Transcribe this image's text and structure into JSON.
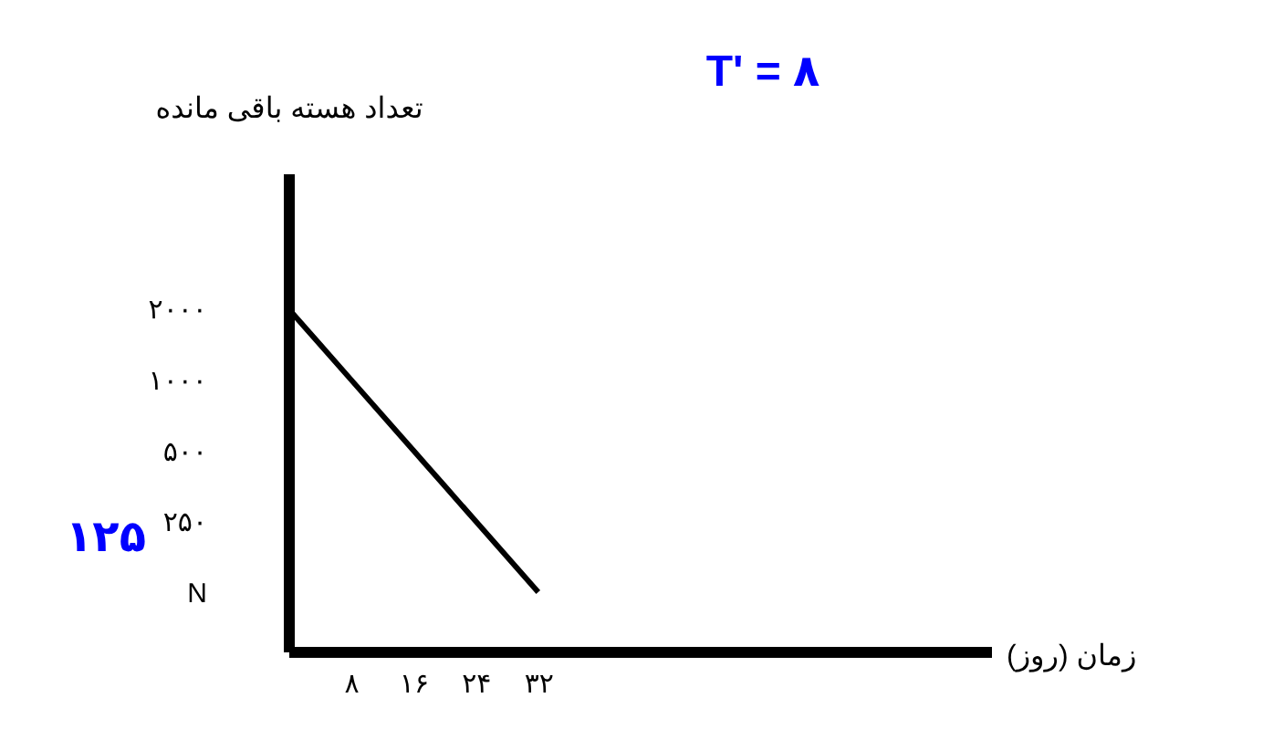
{
  "chart_data": {
    "type": "line",
    "xlabel": "زمان (روز)",
    "ylabel": "تعداد هسته باقی مانده",
    "log": "y",
    "x": [
      0,
      8,
      16,
      24,
      32
    ],
    "series": [
      {
        "color": "#000000",
        "values": [
          2000,
          1000,
          500,
          250,
          125
        ]
      }
    ],
    "xlim": [
      0,
      90
    ],
    "ylim": [
      70,
      7500
    ],
    "xticks": [
      {
        "value": 8,
        "label": "۸"
      },
      {
        "value": 16,
        "label": "۱۶"
      },
      {
        "value": 24,
        "label": "۲۴"
      },
      {
        "value": 32,
        "label": "۳۲"
      }
    ],
    "yticks": [
      {
        "value": 2000,
        "label": "۲۰۰۰"
      },
      {
        "value": 1000,
        "label": "۱۰۰۰"
      },
      {
        "value": 500,
        "label": "۵۰۰"
      },
      {
        "value": 250,
        "label": "۲۵۰"
      },
      {
        "value": 125,
        "label": "N"
      }
    ],
    "annotations": [
      "T' = ۸",
      "۱۲۵"
    ],
    "marker": "none",
    "grid": false
  }
}
